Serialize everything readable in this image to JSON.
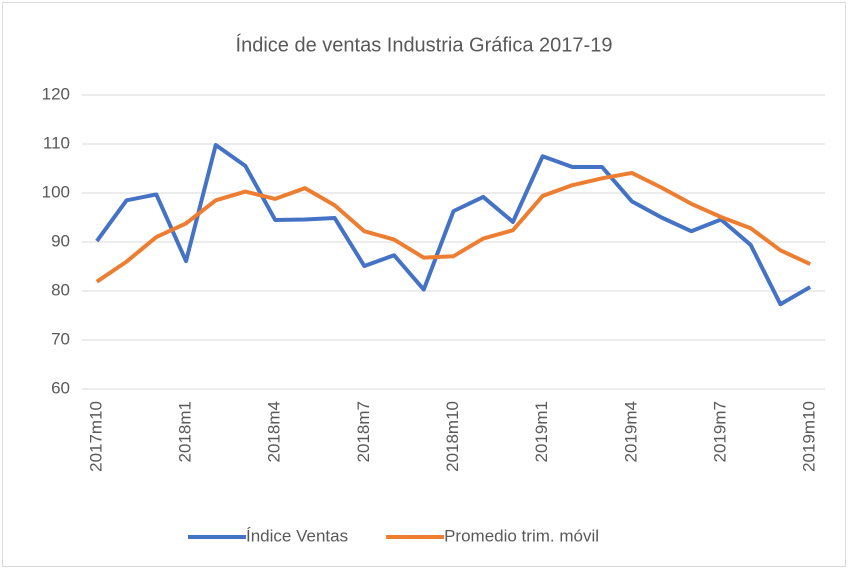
{
  "chart_data": {
    "type": "line",
    "title": "Índice de ventas Industria Gráfica 2017-19",
    "categories": [
      "2017m10",
      null,
      null,
      "2018m1",
      null,
      null,
      "2018m4",
      null,
      null,
      "2018m7",
      null,
      null,
      "2018m10",
      null,
      null,
      "2019m1",
      null,
      null,
      "2019m4",
      null,
      null,
      "2019m7",
      null,
      null,
      "2019m10"
    ],
    "series": [
      {
        "name": "Índice Ventas",
        "color": "#4472c4",
        "values": [
          90.2,
          98.5,
          99.7,
          86.1,
          109.8,
          105.5,
          94.5,
          94.6,
          94.9,
          85.1,
          87.3,
          80.3,
          96.3,
          99.2,
          94.1,
          107.5,
          105.3,
          105.3,
          98.3,
          95.0,
          92.2,
          94.6,
          89.4,
          77.3,
          80.8
        ]
      },
      {
        "name": "Promedio trim. móvil",
        "color": "#ed7d31",
        "values": [
          81.9,
          86.0,
          91.0,
          93.8,
          98.5,
          100.3,
          98.8,
          101.0,
          97.5,
          92.2,
          90.5,
          86.8,
          87.1,
          90.7,
          92.4,
          99.4,
          101.6,
          103.0,
          104.1,
          101.1,
          97.8,
          95.1,
          92.8,
          88.3,
          85.5
        ]
      }
    ],
    "ylim": [
      60,
      120
    ],
    "yticks": [
      60,
      70,
      80,
      90,
      100,
      110,
      120
    ],
    "grid": true,
    "legend": "bottom"
  }
}
